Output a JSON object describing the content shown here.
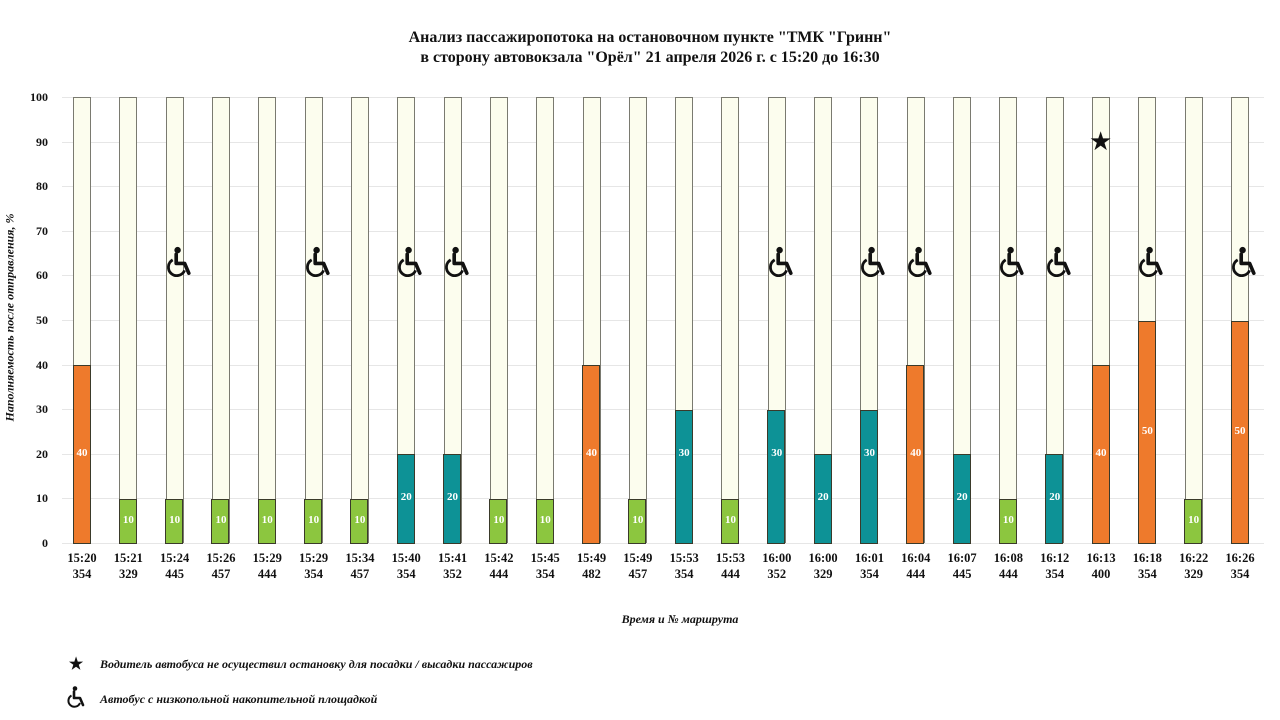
{
  "chart_data": {
    "type": "bar",
    "title": "Анализ пассажиропотока на остановочном пункте \"ТМК \"Гринн\"",
    "subtitle": "в сторону автовокзала \"Орёл\" 21 апреля 2026 г. с 15:20 до 16:30",
    "xlabel": "Время и № маршрута",
    "ylabel": "Наполняемость после отправления, %",
    "ylim": [
      0,
      100
    ],
    "yticks": [
      0,
      10,
      20,
      30,
      40,
      50,
      60,
      70,
      80,
      90,
      100
    ],
    "grid": true,
    "stacked_background_to": 100,
    "categories": [
      {
        "time": "15:20",
        "route": "354"
      },
      {
        "time": "15:21",
        "route": "329"
      },
      {
        "time": "15:24",
        "route": "445"
      },
      {
        "time": "15:26",
        "route": "457"
      },
      {
        "time": "15:29",
        "route": "444"
      },
      {
        "time": "15:29",
        "route": "354"
      },
      {
        "time": "15:34",
        "route": "457"
      },
      {
        "time": "15:40",
        "route": "354"
      },
      {
        "time": "15:41",
        "route": "352"
      },
      {
        "time": "15:42",
        "route": "444"
      },
      {
        "time": "15:45",
        "route": "354"
      },
      {
        "time": "15:49",
        "route": "482"
      },
      {
        "time": "15:49",
        "route": "457"
      },
      {
        "time": "15:53",
        "route": "354"
      },
      {
        "time": "15:53",
        "route": "444"
      },
      {
        "time": "16:00",
        "route": "352"
      },
      {
        "time": "16:00",
        "route": "329"
      },
      {
        "time": "16:01",
        "route": "354"
      },
      {
        "time": "16:04",
        "route": "444"
      },
      {
        "time": "16:07",
        "route": "445"
      },
      {
        "time": "16:08",
        "route": "444"
      },
      {
        "time": "16:12",
        "route": "354"
      },
      {
        "time": "16:13",
        "route": "400"
      },
      {
        "time": "16:18",
        "route": "354"
      },
      {
        "time": "16:22",
        "route": "329"
      },
      {
        "time": "16:26",
        "route": "354"
      }
    ],
    "values": [
      40,
      10,
      10,
      10,
      10,
      10,
      10,
      20,
      20,
      10,
      10,
      40,
      10,
      30,
      10,
      30,
      20,
      30,
      40,
      20,
      10,
      20,
      40,
      50,
      10,
      50
    ],
    "low_floor": [
      false,
      false,
      true,
      false,
      false,
      true,
      false,
      true,
      true,
      false,
      false,
      false,
      false,
      false,
      false,
      true,
      false,
      true,
      true,
      false,
      true,
      true,
      false,
      true,
      false,
      true
    ],
    "no_stop": [
      false,
      false,
      false,
      false,
      false,
      false,
      false,
      false,
      false,
      false,
      false,
      false,
      false,
      false,
      false,
      false,
      false,
      false,
      false,
      false,
      false,
      false,
      true,
      false,
      false,
      false
    ],
    "color_scale": {
      "10": "#8cc63f",
      "20": "#0d9296",
      "30": "#0d9296",
      "40": "#ee7a2c",
      "50": "#ee7a2c"
    },
    "empty_color": "#fcfdee",
    "legend": [
      {
        "icon": "star-icon",
        "symbol": "★",
        "label": "Водитель автобуса не осуществил остановку для посадки / высадки пассажиров"
      },
      {
        "icon": "wheelchair-icon",
        "symbol": "♿",
        "label": "Автобус с низкопольной накопительной площадкой"
      }
    ]
  }
}
